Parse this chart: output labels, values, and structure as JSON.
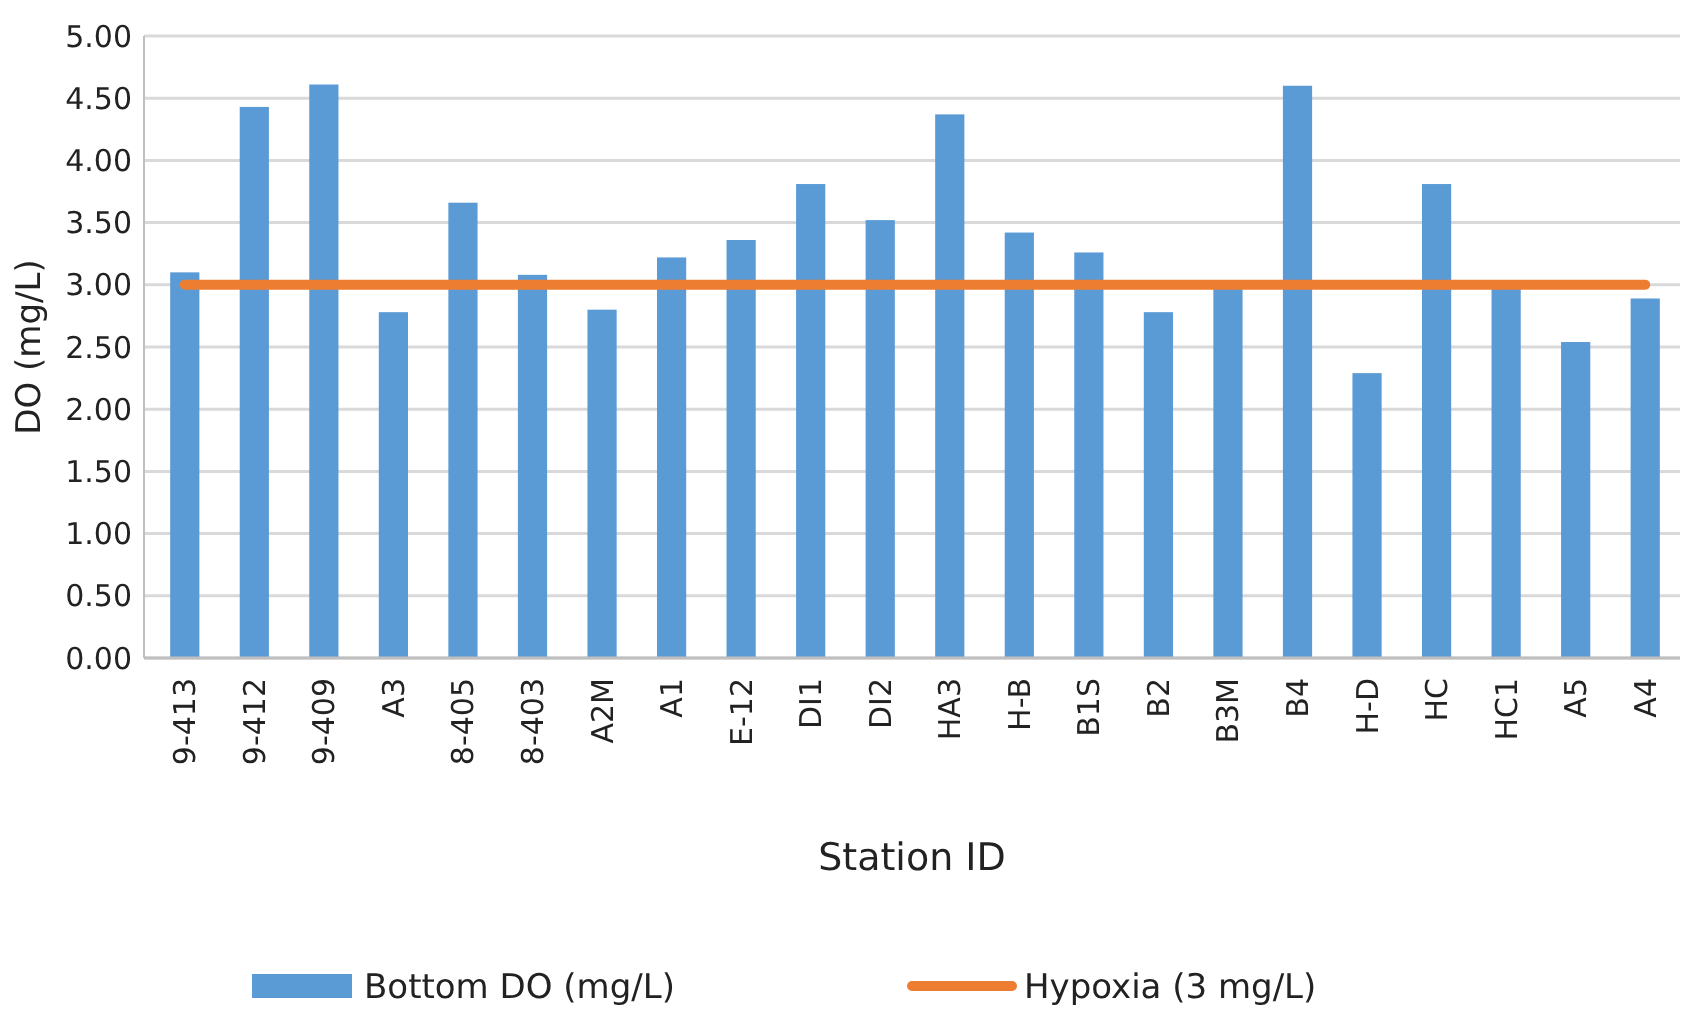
{
  "chart_data": {
    "type": "bar",
    "xlabel": "Station ID",
    "ylabel": "DO (mg/L)",
    "categories": [
      "9-413",
      "9-412",
      "9-409",
      "A3",
      "8-405",
      "8-403",
      "A2M",
      "A1",
      "E-12",
      "DI1",
      "DI2",
      "HA3",
      "H-B",
      "B1S",
      "B2",
      "B3M",
      "B4",
      "H-D",
      "HC",
      "HC1",
      "A5",
      "A4"
    ],
    "series": [
      {
        "name": "Bottom DO (mg/L)",
        "color": "#5b9bd5",
        "values": [
          3.1,
          4.43,
          4.61,
          2.78,
          3.66,
          3.08,
          2.8,
          3.22,
          3.36,
          3.81,
          3.52,
          4.37,
          3.42,
          3.26,
          2.78,
          2.98,
          4.6,
          2.29,
          3.81,
          2.99,
          2.54,
          2.89
        ]
      },
      {
        "name": "Hypoxia (3 mg/L)",
        "type": "line",
        "color": "#ed7d31",
        "values": [
          3,
          3,
          3,
          3,
          3,
          3,
          3,
          3,
          3,
          3,
          3,
          3,
          3,
          3,
          3,
          3,
          3,
          3,
          3,
          3,
          3,
          3
        ]
      }
    ],
    "ylim": [
      0,
      5
    ],
    "yticks": [
      {
        "value": 0,
        "label": "0.00"
      },
      {
        "value": 0.5,
        "label": "0.50"
      },
      {
        "value": 1,
        "label": "1.00"
      },
      {
        "value": 1.5,
        "label": "1.50"
      },
      {
        "value": 2,
        "label": "2.00"
      },
      {
        "value": 2.5,
        "label": "2.50"
      },
      {
        "value": 3,
        "label": "3.00"
      },
      {
        "value": 3.5,
        "label": "3.50"
      },
      {
        "value": 4,
        "label": "4.00"
      },
      {
        "value": 4.5,
        "label": "4.50"
      },
      {
        "value": 5,
        "label": "5.00"
      }
    ],
    "grid": "y",
    "legend": "bottom"
  }
}
